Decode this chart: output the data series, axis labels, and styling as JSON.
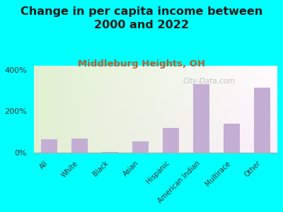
{
  "title": "Change in per capita income between\n2000 and 2022",
  "subtitle": "Middleburg Heights, OH",
  "categories": [
    "All",
    "White",
    "Black",
    "Asian",
    "Hispanic",
    "American Indian",
    "Multirace",
    "Other"
  ],
  "values": [
    65,
    70,
    2,
    55,
    120,
    330,
    140,
    315
  ],
  "bar_color": "#c4aed4",
  "background_outer": "#00FFFF",
  "title_fontsize": 11.5,
  "subtitle_fontsize": 9.5,
  "subtitle_color": "#b06030",
  "title_color": "#1a1a1a",
  "ylim": [
    0,
    420
  ],
  "yticks": [
    0,
    200,
    400
  ],
  "watermark": "City-Data.com"
}
